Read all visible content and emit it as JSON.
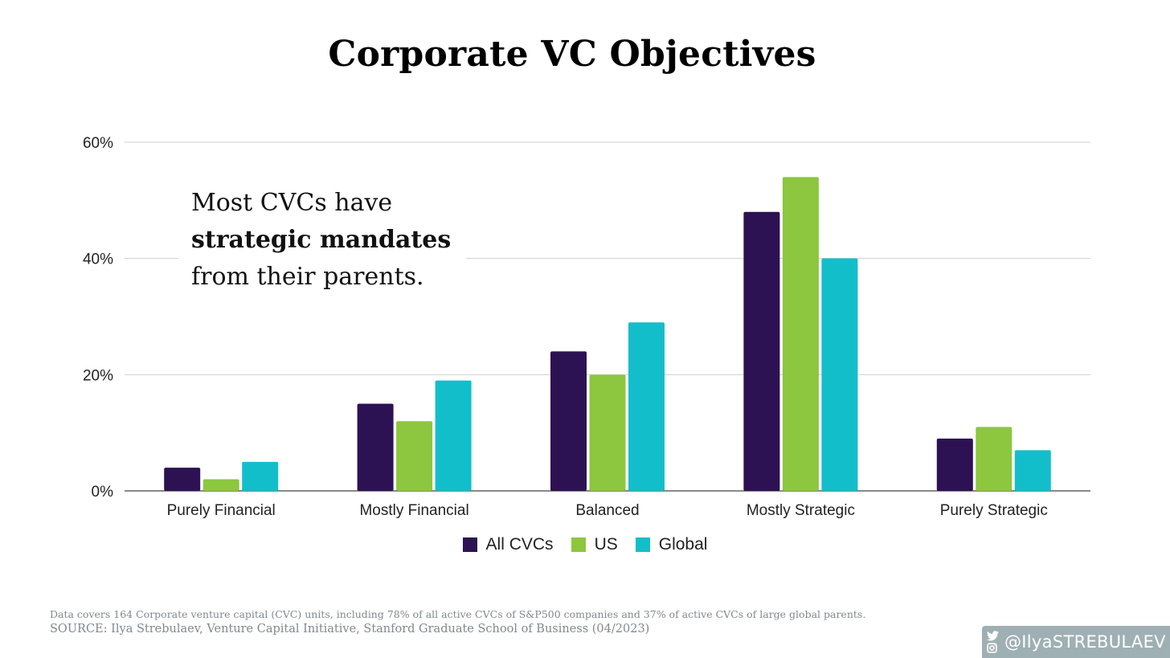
{
  "title": "Corporate VC Objectives",
  "callout": {
    "part1": "Most CVCs have ",
    "bold": "strategic mandates",
    "part2": " from their parents."
  },
  "chart_data": {
    "type": "bar",
    "categories": [
      "Purely Financial",
      "Mostly Financial",
      "Balanced",
      "Mostly Strategic",
      "Purely Strategic"
    ],
    "series": [
      {
        "name": "All CVCs",
        "color": "#2c1252",
        "values": [
          4,
          15,
          24,
          48,
          9
        ]
      },
      {
        "name": "US",
        "color": "#8dc63f",
        "values": [
          2,
          12,
          20,
          54,
          11
        ]
      },
      {
        "name": "Global",
        "color": "#13becb",
        "values": [
          5,
          19,
          29,
          40,
          7
        ]
      }
    ],
    "yticks": [
      "0%",
      "20%",
      "40%",
      "60%"
    ],
    "ylim": [
      0,
      60
    ],
    "grid": true,
    "legend": "bottom"
  },
  "footnote": {
    "line1": "Data covers 164 Corporate venture capital (CVC) units, including 78% of all active CVCs of S&P500 companies and 37% of active CVCs of large global parents.",
    "line2": "SOURCE: Ilya Strebulaev, Venture Capital Initiative, Stanford Graduate School of Business (04/2023)"
  },
  "handle": {
    "text": "@IlyaSTREBULAEV",
    "icons": [
      "twitter-icon",
      "instagram-icon"
    ],
    "background": "#9fb0b4"
  }
}
